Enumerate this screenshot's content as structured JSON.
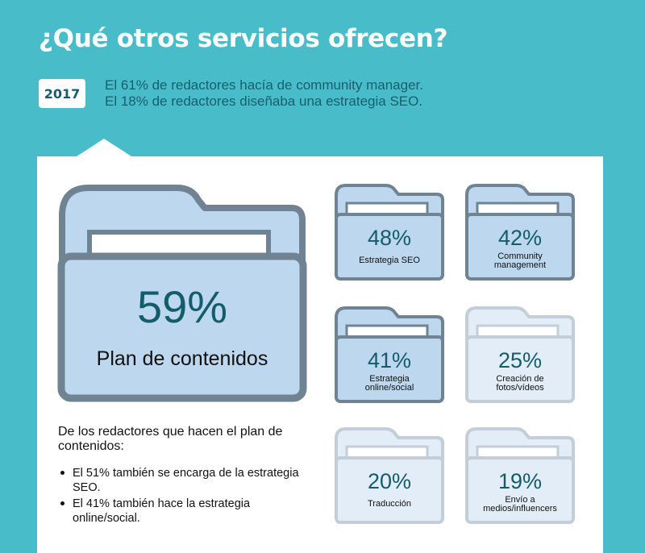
{
  "header": {
    "title": "¿Qué otros servicios ofrecen?",
    "year": "2017",
    "lines": [
      "El 61% de redactores hacía de community manager.",
      "El 18% de redactores diseñaba una estrategia SEO."
    ]
  },
  "main_stat": {
    "value": "59%",
    "label": "Plan de contenidos"
  },
  "services": [
    {
      "value": "48%",
      "label": [
        "Estrategia SEO"
      ]
    },
    {
      "value": "42%",
      "label": [
        "Community",
        "management"
      ]
    },
    {
      "value": "41%",
      "label": [
        "Estrategia",
        "online/social"
      ]
    },
    {
      "value": "25%",
      "label": [
        "Creación de",
        "fotos/vídeos"
      ]
    },
    {
      "value": "20%",
      "label": [
        "Traducción"
      ]
    },
    {
      "value": "19%",
      "label": [
        "Envío a",
        "medios/influencers"
      ]
    }
  ],
  "description": {
    "intro": "De los redactores que hacen el plan de contenidos:",
    "bullets": [
      "El 51% también se encarga de la estrategia SEO.",
      "El 41% también hace la estrategia online/social."
    ]
  },
  "colors": {
    "background": "#49bcca",
    "accent_text": "#135d6b",
    "folder_dark": "#6f8393",
    "folder_fill": "#bcd7ee",
    "folder_light_fill": "#e2edf7",
    "folder_light_stroke": "#c3ced8"
  },
  "icons": [
    "folder-icon"
  ]
}
